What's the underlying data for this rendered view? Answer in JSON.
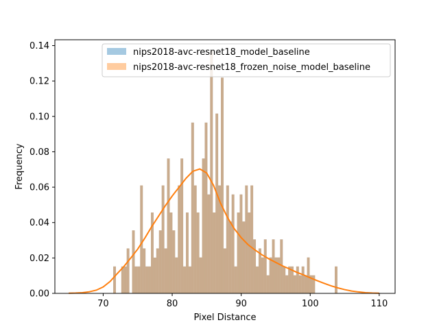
{
  "chart_data": {
    "type": "bar",
    "title": "",
    "xlabel": "Pixel Distance",
    "ylabel": "Frequency",
    "xlim": [
      63,
      112.3
    ],
    "ylim": [
      0,
      0.1433
    ],
    "xticks": [
      70,
      80,
      90,
      100,
      110
    ],
    "yticks": [
      0.0,
      0.02,
      0.04,
      0.06,
      0.08,
      0.1,
      0.12,
      0.14
    ],
    "xtick_labels": [
      "70",
      "80",
      "90",
      "100",
      "110"
    ],
    "ytick_labels": [
      "0.00",
      "0.02",
      "0.04",
      "0.06",
      "0.08",
      "0.10",
      "0.12",
      "0.14"
    ],
    "legend_position": "top-right",
    "bin_width": 0.39,
    "series": [
      {
        "name": "nips2018-avc-resnet18_model_baseline",
        "color": "#1f77b4",
        "opacity": 0.4,
        "bins": [
          {
            "x": 71.65,
            "y": 0.0152
          },
          {
            "x": 72.82,
            "y": 0.0152
          },
          {
            "x": 73.21,
            "y": 0.0152
          },
          {
            "x": 73.6,
            "y": 0.0254
          },
          {
            "x": 74.38,
            "y": 0.0356
          },
          {
            "x": 74.77,
            "y": 0.0152
          },
          {
            "x": 75.16,
            "y": 0.0152
          },
          {
            "x": 75.55,
            "y": 0.061
          },
          {
            "x": 75.94,
            "y": 0.0254
          },
          {
            "x": 76.33,
            "y": 0.0152
          },
          {
            "x": 76.72,
            "y": 0.0152
          },
          {
            "x": 77.11,
            "y": 0.0457
          },
          {
            "x": 77.5,
            "y": 0.0202
          },
          {
            "x": 77.89,
            "y": 0.0254
          },
          {
            "x": 78.28,
            "y": 0.0356
          },
          {
            "x": 78.67,
            "y": 0.061
          },
          {
            "x": 79.06,
            "y": 0.0254
          },
          {
            "x": 79.45,
            "y": 0.0762
          },
          {
            "x": 79.84,
            "y": 0.0457
          },
          {
            "x": 80.23,
            "y": 0.0356
          },
          {
            "x": 80.62,
            "y": 0.0203
          },
          {
            "x": 81.01,
            "y": 0.061
          },
          {
            "x": 81.4,
            "y": 0.0762
          },
          {
            "x": 81.79,
            "y": 0.0152
          },
          {
            "x": 82.18,
            "y": 0.0457
          },
          {
            "x": 82.57,
            "y": 0.0152
          },
          {
            "x": 82.96,
            "y": 0.0965
          },
          {
            "x": 83.35,
            "y": 0.061
          },
          {
            "x": 83.74,
            "y": 0.0457
          },
          {
            "x": 84.13,
            "y": 0.0203
          },
          {
            "x": 84.52,
            "y": 0.0762
          },
          {
            "x": 84.91,
            "y": 0.0965
          },
          {
            "x": 85.3,
            "y": 0.0559
          },
          {
            "x": 85.69,
            "y": 0.1372
          },
          {
            "x": 86.08,
            "y": 0.0457
          },
          {
            "x": 86.47,
            "y": 0.1016
          },
          {
            "x": 86.86,
            "y": 0.061
          },
          {
            "x": 87.25,
            "y": 0.1219
          },
          {
            "x": 87.64,
            "y": 0.0254
          },
          {
            "x": 88.03,
            "y": 0.061
          },
          {
            "x": 88.42,
            "y": 0.0406
          },
          {
            "x": 88.81,
            "y": 0.0559
          },
          {
            "x": 89.2,
            "y": 0.0152
          },
          {
            "x": 89.59,
            "y": 0.0457
          },
          {
            "x": 89.98,
            "y": 0.0559
          },
          {
            "x": 90.37,
            "y": 0.0406
          },
          {
            "x": 90.76,
            "y": 0.061
          },
          {
            "x": 91.15,
            "y": 0.0457
          },
          {
            "x": 91.54,
            "y": 0.061
          },
          {
            "x": 91.93,
            "y": 0.0305
          },
          {
            "x": 92.32,
            "y": 0.0152
          },
          {
            "x": 92.71,
            "y": 0.0254
          },
          {
            "x": 93.1,
            "y": 0.0203
          },
          {
            "x": 93.49,
            "y": 0.0305
          },
          {
            "x": 93.88,
            "y": 0.0102
          },
          {
            "x": 94.27,
            "y": 0.0203
          },
          {
            "x": 94.66,
            "y": 0.0305
          },
          {
            "x": 95.05,
            "y": 0.0203
          },
          {
            "x": 95.44,
            "y": 0.0203
          },
          {
            "x": 95.83,
            "y": 0.0305
          },
          {
            "x": 96.22,
            "y": 0.0152
          },
          {
            "x": 96.61,
            "y": 0.0102
          },
          {
            "x": 97.0,
            "y": 0.0152
          },
          {
            "x": 97.39,
            "y": 0.0152
          },
          {
            "x": 97.78,
            "y": 0.0102
          },
          {
            "x": 98.17,
            "y": 0.0152
          },
          {
            "x": 98.56,
            "y": 0.0102
          },
          {
            "x": 98.95,
            "y": 0.0152
          },
          {
            "x": 99.34,
            "y": 0.0102
          },
          {
            "x": 99.73,
            "y": 0.0203
          },
          {
            "x": 100.12,
            "y": 0.0102
          },
          {
            "x": 100.51,
            "y": 0.0102
          },
          {
            "x": 103.75,
            "y": 0.0152
          }
        ]
      },
      {
        "name": "nips2018-avc-resnet18_frozen_noise_model_baseline",
        "color": "#ff7f0e",
        "opacity": 0.4,
        "same_bins_as": 0
      }
    ],
    "kde": {
      "color": "#ff7f0e",
      "points": [
        {
          "x": 65,
          "y": 0.0001
        },
        {
          "x": 66,
          "y": 0.0002
        },
        {
          "x": 67,
          "y": 0.0004
        },
        {
          "x": 68,
          "y": 0.0009
        },
        {
          "x": 69,
          "y": 0.0018
        },
        {
          "x": 70,
          "y": 0.0036
        },
        {
          "x": 71,
          "y": 0.0067
        },
        {
          "x": 72,
          "y": 0.011
        },
        {
          "x": 73,
          "y": 0.0152
        },
        {
          "x": 74,
          "y": 0.02
        },
        {
          "x": 75,
          "y": 0.025
        },
        {
          "x": 76,
          "y": 0.031
        },
        {
          "x": 77,
          "y": 0.0375
        },
        {
          "x": 78,
          "y": 0.0435
        },
        {
          "x": 79,
          "y": 0.0495
        },
        {
          "x": 80,
          "y": 0.055
        },
        {
          "x": 81,
          "y": 0.06
        },
        {
          "x": 82,
          "y": 0.065
        },
        {
          "x": 83,
          "y": 0.069
        },
        {
          "x": 84,
          "y": 0.0703
        },
        {
          "x": 85,
          "y": 0.068
        },
        {
          "x": 86,
          "y": 0.061
        },
        {
          "x": 87,
          "y": 0.051
        },
        {
          "x": 88,
          "y": 0.043
        },
        {
          "x": 89,
          "y": 0.0365
        },
        {
          "x": 90,
          "y": 0.0315
        },
        {
          "x": 91,
          "y": 0.0275
        },
        {
          "x": 92,
          "y": 0.0245
        },
        {
          "x": 93,
          "y": 0.0218
        },
        {
          "x": 94,
          "y": 0.0195
        },
        {
          "x": 95,
          "y": 0.0175
        },
        {
          "x": 96,
          "y": 0.0155
        },
        {
          "x": 97,
          "y": 0.0138
        },
        {
          "x": 98,
          "y": 0.012
        },
        {
          "x": 99,
          "y": 0.0105
        },
        {
          "x": 100,
          "y": 0.0088
        },
        {
          "x": 101,
          "y": 0.0072
        },
        {
          "x": 102,
          "y": 0.0057
        },
        {
          "x": 103,
          "y": 0.0043
        },
        {
          "x": 104,
          "y": 0.0031
        },
        {
          "x": 105,
          "y": 0.0021
        },
        {
          "x": 106,
          "y": 0.0013
        },
        {
          "x": 107,
          "y": 0.0008
        },
        {
          "x": 108,
          "y": 0.0004
        },
        {
          "x": 109,
          "y": 0.0002
        },
        {
          "x": 110,
          "y": 0.0001
        }
      ]
    }
  }
}
